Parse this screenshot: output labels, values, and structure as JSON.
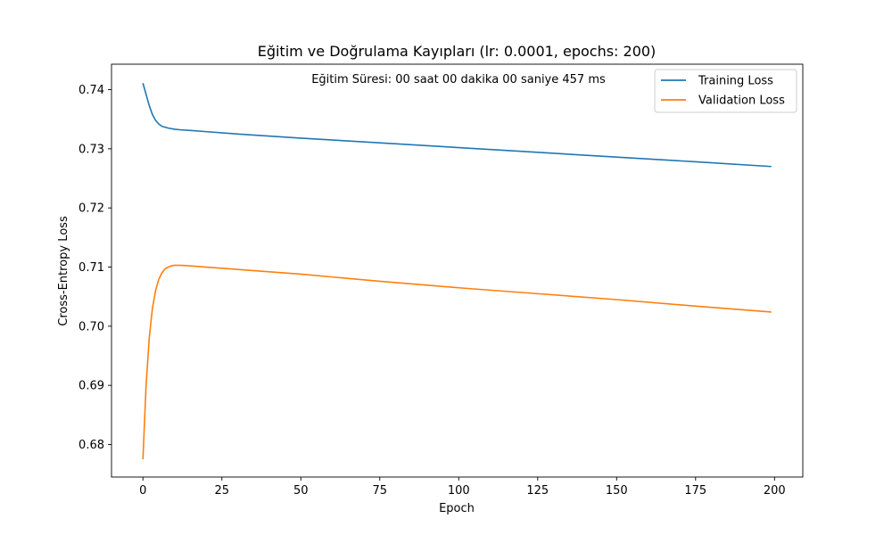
{
  "chart_data": {
    "type": "line",
    "title": "Eğitim ve Doğrulama Kayıpları (lr: 0.0001, epochs: 200)",
    "annotation": "Eğitim Süresi: 00 saat 00 dakika 00 saniye 457 ms",
    "xlabel": "Epoch",
    "ylabel": "Cross-Entropy Loss",
    "xlim": [
      -9.95,
      208.95
    ],
    "ylim": [
      0.6745,
      0.7443
    ],
    "xticks": [
      0,
      25,
      50,
      75,
      100,
      125,
      150,
      175,
      200
    ],
    "yticks": [
      0.68,
      0.69,
      0.7,
      0.71,
      0.72,
      0.73,
      0.74
    ],
    "ytick_labels": [
      "0.68",
      "0.69",
      "0.70",
      "0.71",
      "0.72",
      "0.73",
      "0.74"
    ],
    "legend_position": "top-right",
    "grid": false,
    "series": [
      {
        "name": "Training Loss",
        "color": "#1f77b4",
        "x": [
          0,
          1,
          2,
          3,
          4,
          5,
          6,
          8,
          10,
          12,
          15,
          20,
          30,
          50,
          75,
          100,
          125,
          150,
          175,
          199
        ],
        "y": [
          0.7411,
          0.7392,
          0.7373,
          0.7358,
          0.7348,
          0.7342,
          0.7338,
          0.7335,
          0.7333,
          0.7332,
          0.7331,
          0.7329,
          0.7325,
          0.7318,
          0.731,
          0.7302,
          0.7294,
          0.7286,
          0.7278,
          0.727
        ]
      },
      {
        "name": "Validation Loss",
        "color": "#ff7f0e",
        "x": [
          0,
          1,
          2,
          3,
          4,
          5,
          6,
          7,
          8,
          9,
          10,
          12,
          15,
          20,
          30,
          50,
          75,
          100,
          125,
          150,
          175,
          199
        ],
        "y": [
          0.6775,
          0.69,
          0.698,
          0.703,
          0.706,
          0.7079,
          0.709,
          0.7097,
          0.71,
          0.7102,
          0.7103,
          0.7103,
          0.7102,
          0.71,
          0.7096,
          0.7088,
          0.7076,
          0.7065,
          0.7055,
          0.7045,
          0.7034,
          0.7024
        ]
      }
    ]
  }
}
